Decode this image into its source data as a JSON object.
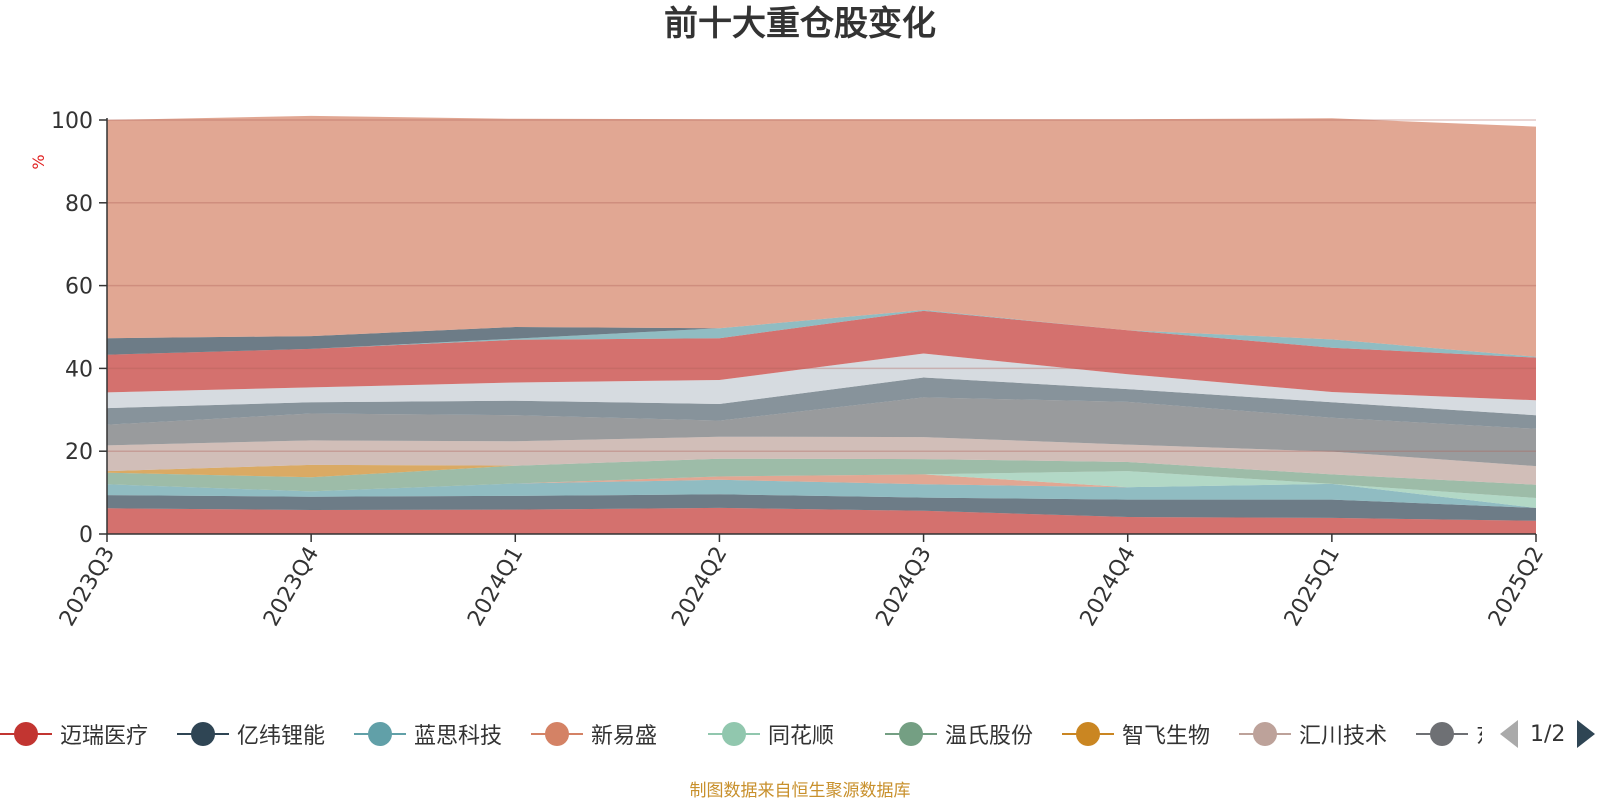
{
  "source_note": "制图数据来自恒生聚源数据库",
  "legend": {
    "items": [
      {
        "label": "迈瑞医疗",
        "color": "#c23531"
      },
      {
        "label": "亿纬锂能",
        "color": "#2f4554"
      },
      {
        "label": "蓝思科技",
        "color": "#61a0a8"
      },
      {
        "label": "新易盛",
        "color": "#d48265"
      },
      {
        "label": "同花顺",
        "color": "#91c7ae"
      },
      {
        "label": "温氏股份",
        "color": "#749f83"
      },
      {
        "label": "智飞生物",
        "color": "#ca8622"
      },
      {
        "label": "汇川技术",
        "color": "#bda29a"
      },
      {
        "label": "东方财富",
        "color": "#6e7074"
      }
    ],
    "page_indicator": "1/2"
  },
  "chart_data": {
    "type": "area",
    "stacked": true,
    "title": "前十大重仓股变化",
    "ylabel": "%",
    "xlabel": "",
    "ylim": [
      0,
      100
    ],
    "y_ticks": [
      0,
      20,
      40,
      60,
      80,
      100
    ],
    "grid": true,
    "x": [
      "2023Q3",
      "2023Q4",
      "2024Q1",
      "2024Q2",
      "2024Q3",
      "2024Q4",
      "2025Q1",
      "2025Q2"
    ],
    "series": [
      {
        "name": "迈瑞医疗",
        "color": "#c23531",
        "values": [
          6.2,
          5.8,
          5.9,
          6.3,
          5.6,
          4.1,
          3.9,
          3.2
        ]
      },
      {
        "name": "亿纬锂能",
        "color": "#2f4554",
        "values": [
          3.2,
          3.2,
          3.3,
          3.3,
          3.2,
          4.2,
          4.4,
          3.1
        ]
      },
      {
        "name": "蓝思科技",
        "color": "#61a0a8",
        "values": [
          2.6,
          1.3,
          3.0,
          3.5,
          3.2,
          3.0,
          3.8,
          0
        ]
      },
      {
        "name": "新易盛",
        "color": "#d48265",
        "values": [
          0,
          0,
          0,
          0.8,
          2.4,
          0,
          0,
          0
        ]
      },
      {
        "name": "同花顺",
        "color": "#91c7ae",
        "values": [
          0,
          0,
          0,
          0,
          0,
          3.9,
          0,
          2.4
        ]
      },
      {
        "name": "温氏股份",
        "color": "#749f83",
        "values": [
          2.8,
          3.4,
          4.3,
          4.3,
          3.7,
          2.2,
          2.3,
          3.2
        ]
      },
      {
        "name": "智飞生物",
        "color": "#ca8622",
        "values": [
          0.4,
          3.0,
          0,
          0,
          0,
          0,
          0,
          0
        ]
      },
      {
        "name": "汇川技术",
        "color": "#bda29a",
        "values": [
          6.2,
          5.9,
          5.9,
          5.3,
          5.3,
          4.2,
          5.5,
          4.5
        ]
      },
      {
        "name": "东方财富",
        "color": "#6e7074",
        "values": [
          5.0,
          6.5,
          6.3,
          3.9,
          9.6,
          10.3,
          8.2,
          9.0
        ]
      },
      {
        "name": "",
        "color": "#546570",
        "values": [
          4.0,
          2.7,
          3.5,
          4.0,
          4.8,
          3.1,
          3.7,
          3.3
        ]
      },
      {
        "name": "",
        "color": "#c4ccd3",
        "values": [
          3.8,
          3.6,
          4.4,
          5.8,
          5.8,
          3.6,
          2.5,
          3.6
        ]
      },
      {
        "name": "",
        "color": "#c23531",
        "values": [
          9.1,
          9.3,
          10.3,
          10.1,
          10.3,
          10.6,
          10.7,
          10.3
        ]
      },
      {
        "name": "",
        "color": "#61a0a8",
        "values": [
          0,
          0,
          0.3,
          2.4,
          0.2,
          0,
          2.0,
          0.2
        ]
      },
      {
        "name": "",
        "color": "#2f4554",
        "values": [
          4.0,
          3.1,
          2.8,
          0,
          0,
          0,
          0,
          0
        ]
      },
      {
        "name": "",
        "color": "#d48265",
        "values": [
          52.7,
          53.2,
          50.3,
          50.5,
          46.1,
          51.0,
          53.4,
          55.6
        ]
      }
    ]
  }
}
